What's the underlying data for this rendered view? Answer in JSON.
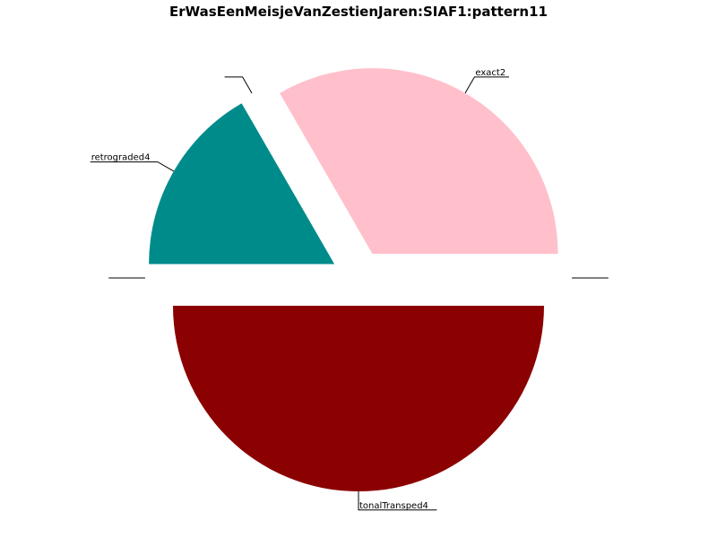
{
  "chart_data": {
    "type": "pie",
    "title": "ErWasEenMeisjeVanZestienJaren:SIAF1:pattern11",
    "start_angle_deg": 0,
    "direction": "counterclockwise",
    "slices": [
      {
        "label": "exact2",
        "value": 2,
        "color": "#ffc0cb",
        "exploded": true
      },
      {
        "label": "",
        "value": 0,
        "color": "#ffffff",
        "exploded": true
      },
      {
        "label": "retrograded4",
        "value": 1,
        "color": "#008b8b",
        "exploded": true
      },
      {
        "label": "",
        "value": 0,
        "color": "#ffffff",
        "exploded": true
      },
      {
        "label": "tonalTransped4",
        "value": 3,
        "color": "#8b0000",
        "exploded": true
      },
      {
        "label": "",
        "value": 0,
        "color": "#ffffff",
        "exploded": true
      }
    ]
  }
}
